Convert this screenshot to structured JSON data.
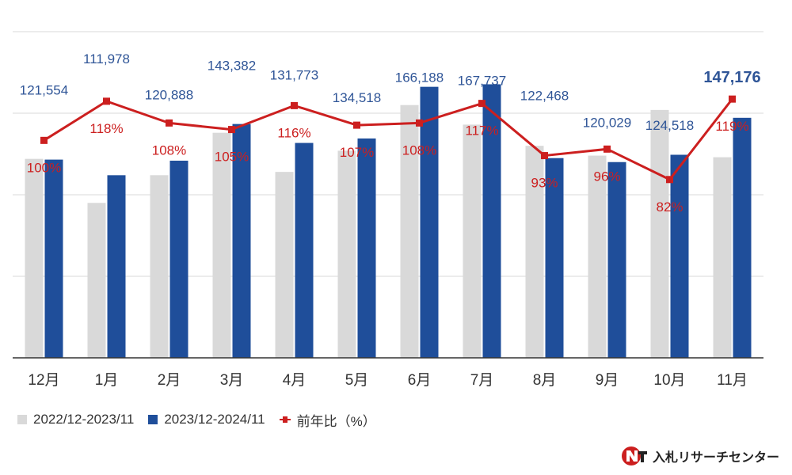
{
  "colors": {
    "prev_year_bar": "#d9d9d9",
    "this_year_bar": "#1f4e9a",
    "yoy_line": "#cc1f1f",
    "count_label": "#2f5597",
    "grid": "#d9d9d9",
    "axis": "#333333"
  },
  "chart_data": {
    "type": "bar",
    "title": "",
    "xlabel": "",
    "ylabel": "",
    "categories": [
      "12月",
      "1月",
      "2月",
      "3月",
      "4月",
      "5月",
      "6月",
      "7月",
      "8月",
      "9月",
      "10月",
      "11月"
    ],
    "ylim": [
      0,
      200000
    ],
    "y2lim": [
      0,
      150
    ],
    "grid": true,
    "legend_position": "bottom-left",
    "series": [
      {
        "name": "2022/12-2023/11",
        "type": "bar",
        "values": [
          122000,
          95000,
          112000,
          138000,
          114000,
          127000,
          155000,
          143000,
          130000,
          124000,
          152000,
          123000
        ]
      },
      {
        "name": "2023/12-2024/11",
        "type": "bar",
        "values": [
          121554,
          111978,
          120888,
          143382,
          131773,
          134518,
          166188,
          167737,
          122468,
          120029,
          124518,
          147176
        ],
        "labels": [
          "121,554",
          "111,978",
          "120,888",
          "143,382",
          "131,773",
          "134,518",
          "166,188",
          "167,737",
          "122,468",
          "120,029",
          "124,518",
          "147,176"
        ]
      },
      {
        "name": "前年比（%）",
        "type": "line",
        "axis": "secondary",
        "values": [
          100,
          118,
          108,
          105,
          116,
          107,
          108,
          117,
          93,
          96,
          82,
          119
        ],
        "labels": [
          "100%",
          "118%",
          "108%",
          "105%",
          "116%",
          "107%",
          "108%",
          "117%",
          "93%",
          "96%",
          "82%",
          "119%"
        ]
      }
    ]
  },
  "legend": {
    "item1": "2022/12-2023/11",
    "item2": "2023/12-2024/11",
    "item3": "前年比（%）"
  },
  "logo": {
    "text": "入札リサーチセンター",
    "icon": "nt-logo-icon"
  }
}
